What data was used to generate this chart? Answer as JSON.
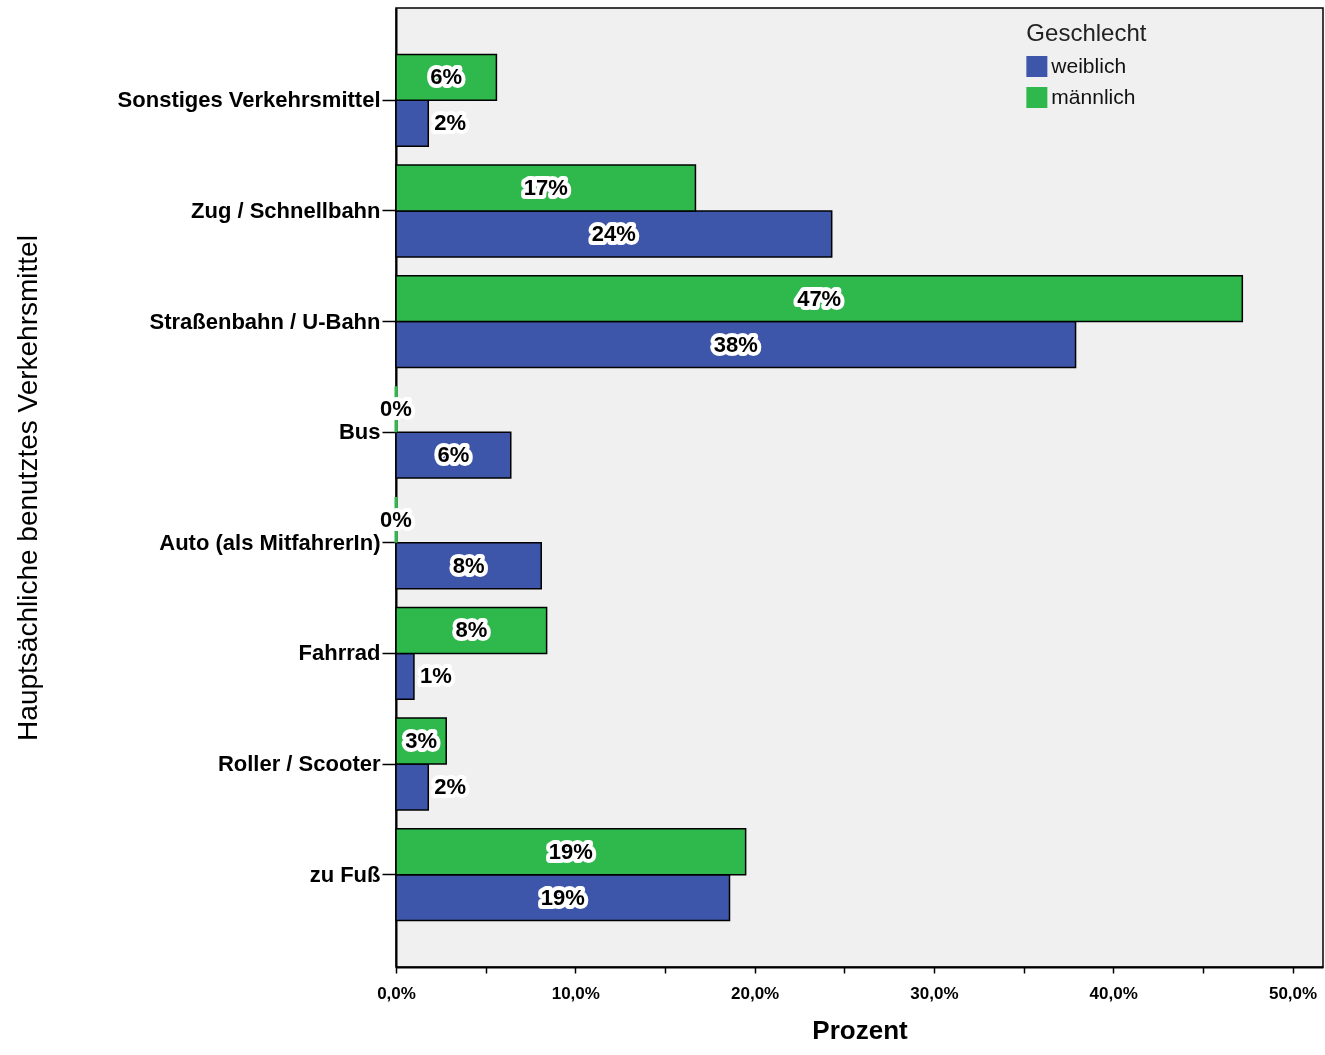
{
  "chart_data": {
    "type": "bar",
    "orientation": "horizontal",
    "xlabel": "Prozent",
    "ylabel": "Hauptsächliche benutztes Verkehrsmittel",
    "legend_title": "Geschlecht",
    "legend": "top right",
    "categories": [
      "Sonstiges Verkehrsmittel",
      "Zug / Schnellbahn",
      "Straßenbahn / U-Bahn",
      "Bus",
      "Auto (als MitfahrerIn)",
      "Fahrrad",
      "Roller / Scooter",
      "zu Fuß"
    ],
    "series": [
      {
        "name": "weiblich",
        "color": "#3e56aa",
        "values": [
          1.8,
          24.3,
          37.9,
          6.4,
          8.1,
          1.0,
          1.8,
          18.6
        ],
        "value_labels": [
          "2%",
          "24%",
          "38%",
          "6%",
          "8%",
          "1%",
          "2%",
          "19%"
        ]
      },
      {
        "name": "männlich",
        "color": "#2fb84b",
        "values": [
          5.6,
          16.7,
          47.2,
          0,
          0,
          8.4,
          2.8,
          19.5
        ],
        "value_labels": [
          "6%",
          "17%",
          "47%",
          "0%",
          "0%",
          "8%",
          "3%",
          "19%"
        ]
      }
    ],
    "xlim": [
      0,
      51.7
    ],
    "xticks": [
      {
        "value": 0,
        "label": "0,0%"
      },
      {
        "value": 5,
        "label": null
      },
      {
        "value": 10,
        "label": "10,0%"
      },
      {
        "value": 15,
        "label": null
      },
      {
        "value": 20,
        "label": "20,0%"
      },
      {
        "value": 25,
        "label": null
      },
      {
        "value": 30,
        "label": "30,0%"
      },
      {
        "value": 35,
        "label": null
      },
      {
        "value": 40,
        "label": "40,0%"
      },
      {
        "value": 45,
        "label": null
      },
      {
        "value": 50,
        "label": "50,0%"
      }
    ]
  }
}
